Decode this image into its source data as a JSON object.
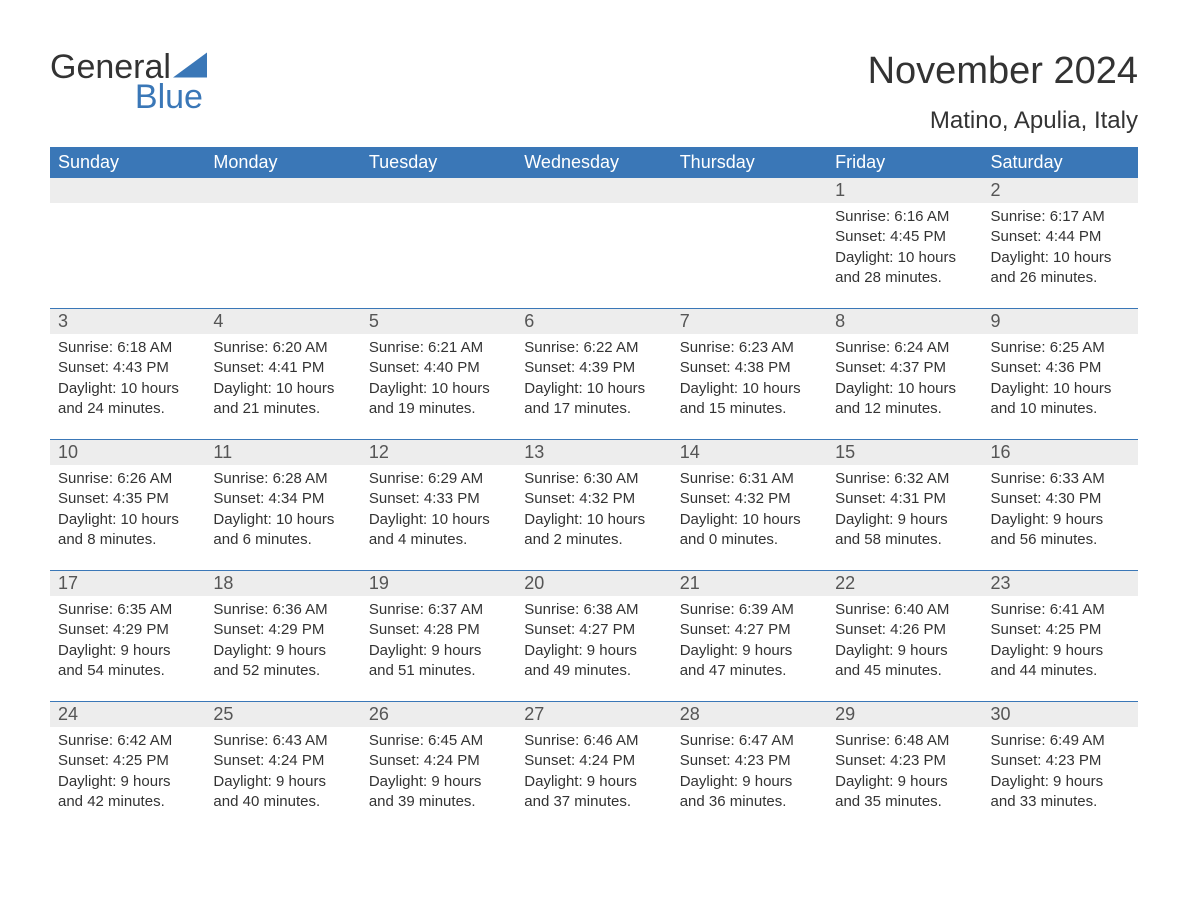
{
  "brand": {
    "name_part1": "General",
    "name_part2": "Blue"
  },
  "colors": {
    "accent": "#3a77b7",
    "header_row_bg": "#3a77b7",
    "header_row_text": "#ffffff",
    "day_number_bg": "#ededed",
    "text": "#333333",
    "background": "#ffffff"
  },
  "title": "November 2024",
  "location": "Matino, Apulia, Italy",
  "weekdays": [
    "Sunday",
    "Monday",
    "Tuesday",
    "Wednesday",
    "Thursday",
    "Friday",
    "Saturday"
  ],
  "labels": {
    "sunrise": "Sunrise:",
    "sunset": "Sunset:",
    "daylight": "Daylight:"
  },
  "weeks": [
    [
      null,
      null,
      null,
      null,
      null,
      {
        "day": "1",
        "sunrise": "6:16 AM",
        "sunset": "4:45 PM",
        "daylight": "10 hours and 28 minutes."
      },
      {
        "day": "2",
        "sunrise": "6:17 AM",
        "sunset": "4:44 PM",
        "daylight": "10 hours and 26 minutes."
      }
    ],
    [
      {
        "day": "3",
        "sunrise": "6:18 AM",
        "sunset": "4:43 PM",
        "daylight": "10 hours and 24 minutes."
      },
      {
        "day": "4",
        "sunrise": "6:20 AM",
        "sunset": "4:41 PM",
        "daylight": "10 hours and 21 minutes."
      },
      {
        "day": "5",
        "sunrise": "6:21 AM",
        "sunset": "4:40 PM",
        "daylight": "10 hours and 19 minutes."
      },
      {
        "day": "6",
        "sunrise": "6:22 AM",
        "sunset": "4:39 PM",
        "daylight": "10 hours and 17 minutes."
      },
      {
        "day": "7",
        "sunrise": "6:23 AM",
        "sunset": "4:38 PM",
        "daylight": "10 hours and 15 minutes."
      },
      {
        "day": "8",
        "sunrise": "6:24 AM",
        "sunset": "4:37 PM",
        "daylight": "10 hours and 12 minutes."
      },
      {
        "day": "9",
        "sunrise": "6:25 AM",
        "sunset": "4:36 PM",
        "daylight": "10 hours and 10 minutes."
      }
    ],
    [
      {
        "day": "10",
        "sunrise": "6:26 AM",
        "sunset": "4:35 PM",
        "daylight": "10 hours and 8 minutes."
      },
      {
        "day": "11",
        "sunrise": "6:28 AM",
        "sunset": "4:34 PM",
        "daylight": "10 hours and 6 minutes."
      },
      {
        "day": "12",
        "sunrise": "6:29 AM",
        "sunset": "4:33 PM",
        "daylight": "10 hours and 4 minutes."
      },
      {
        "day": "13",
        "sunrise": "6:30 AM",
        "sunset": "4:32 PM",
        "daylight": "10 hours and 2 minutes."
      },
      {
        "day": "14",
        "sunrise": "6:31 AM",
        "sunset": "4:32 PM",
        "daylight": "10 hours and 0 minutes."
      },
      {
        "day": "15",
        "sunrise": "6:32 AM",
        "sunset": "4:31 PM",
        "daylight": "9 hours and 58 minutes."
      },
      {
        "day": "16",
        "sunrise": "6:33 AM",
        "sunset": "4:30 PM",
        "daylight": "9 hours and 56 minutes."
      }
    ],
    [
      {
        "day": "17",
        "sunrise": "6:35 AM",
        "sunset": "4:29 PM",
        "daylight": "9 hours and 54 minutes."
      },
      {
        "day": "18",
        "sunrise": "6:36 AM",
        "sunset": "4:29 PM",
        "daylight": "9 hours and 52 minutes."
      },
      {
        "day": "19",
        "sunrise": "6:37 AM",
        "sunset": "4:28 PM",
        "daylight": "9 hours and 51 minutes."
      },
      {
        "day": "20",
        "sunrise": "6:38 AM",
        "sunset": "4:27 PM",
        "daylight": "9 hours and 49 minutes."
      },
      {
        "day": "21",
        "sunrise": "6:39 AM",
        "sunset": "4:27 PM",
        "daylight": "9 hours and 47 minutes."
      },
      {
        "day": "22",
        "sunrise": "6:40 AM",
        "sunset": "4:26 PM",
        "daylight": "9 hours and 45 minutes."
      },
      {
        "day": "23",
        "sunrise": "6:41 AM",
        "sunset": "4:25 PM",
        "daylight": "9 hours and 44 minutes."
      }
    ],
    [
      {
        "day": "24",
        "sunrise": "6:42 AM",
        "sunset": "4:25 PM",
        "daylight": "9 hours and 42 minutes."
      },
      {
        "day": "25",
        "sunrise": "6:43 AM",
        "sunset": "4:24 PM",
        "daylight": "9 hours and 40 minutes."
      },
      {
        "day": "26",
        "sunrise": "6:45 AM",
        "sunset": "4:24 PM",
        "daylight": "9 hours and 39 minutes."
      },
      {
        "day": "27",
        "sunrise": "6:46 AM",
        "sunset": "4:24 PM",
        "daylight": "9 hours and 37 minutes."
      },
      {
        "day": "28",
        "sunrise": "6:47 AM",
        "sunset": "4:23 PM",
        "daylight": "9 hours and 36 minutes."
      },
      {
        "day": "29",
        "sunrise": "6:48 AM",
        "sunset": "4:23 PM",
        "daylight": "9 hours and 35 minutes."
      },
      {
        "day": "30",
        "sunrise": "6:49 AM",
        "sunset": "4:23 PM",
        "daylight": "9 hours and 33 minutes."
      }
    ]
  ]
}
